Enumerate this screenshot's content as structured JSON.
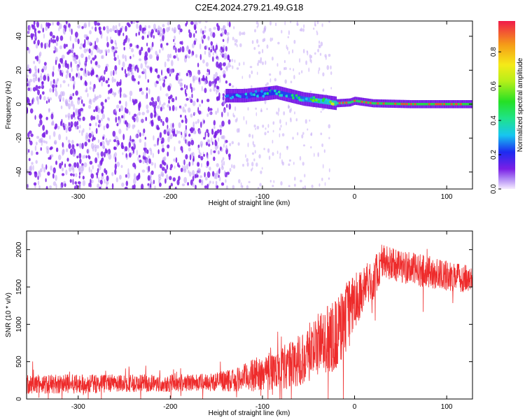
{
  "title": "C2E4.2024.279.21.49.G18",
  "colors": {
    "speckle": "#7a1fe6",
    "snr_line": "#ee2b2b",
    "axis": "#000000"
  },
  "chart_data": [
    {
      "type": "heatmap",
      "xlabel": "Height of straight line (km)",
      "ylabel": "Frequency (Hz)",
      "xlim": [
        -356,
        128
      ],
      "ylim": [
        -50,
        49
      ],
      "x_ticks": [
        -300,
        -200,
        -100,
        0,
        100
      ],
      "x_tick_labels": [
        "-300",
        "-200",
        "-100",
        "0",
        "100"
      ],
      "y_ticks": [
        -40,
        -20,
        0,
        20,
        40
      ],
      "y_tick_labels": [
        "-40",
        "-20",
        "0",
        "20",
        "40"
      ],
      "colorbar": {
        "label": "Normalized spectral amplitude",
        "range": [
          0,
          0.98
        ],
        "ticks": [
          0.0,
          0.2,
          0.4,
          0.6,
          0.8
        ],
        "tick_labels": [
          "0.0",
          "0.2",
          "0.4",
          "0.6",
          "0.8"
        ],
        "colormap": "rainbow"
      },
      "noise_region": {
        "x_range": [
          -356,
          -135
        ],
        "amplitude": 0.1
      },
      "signal_band": {
        "x_start": -140,
        "center_freq_hz": [
          [
            -140,
            5
          ],
          [
            -120,
            5
          ],
          [
            -100,
            6
          ],
          [
            -85,
            7
          ],
          [
            -70,
            5
          ],
          [
            -55,
            3
          ],
          [
            -40,
            2
          ],
          [
            -20,
            0.5
          ],
          [
            -5,
            1
          ],
          [
            0,
            2
          ],
          [
            20,
            0.5
          ],
          [
            60,
            0
          ],
          [
            128,
            0
          ]
        ],
        "peak_amplitude": [
          [
            -140,
            0.28
          ],
          [
            -100,
            0.4
          ],
          [
            -60,
            0.45
          ],
          [
            -20,
            0.7
          ],
          [
            0,
            0.85
          ],
          [
            60,
            0.9
          ],
          [
            128,
            0.9
          ]
        ]
      }
    },
    {
      "type": "line",
      "xlabel": "Height of straight line (km)",
      "ylabel": "SNR (10 * v/v)",
      "xlim": [
        -356,
        128
      ],
      "ylim": [
        0,
        2250
      ],
      "x_ticks": [
        -300,
        -200,
        -100,
        0,
        100
      ],
      "x_tick_labels": [
        "-300",
        "-200",
        "-100",
        "0",
        "100"
      ],
      "y_ticks": [
        0,
        500,
        1000,
        1500,
        2000
      ],
      "y_tick_labels": [
        "0",
        "500",
        "1000",
        "1500",
        "2000"
      ],
      "series": [
        {
          "color": "#ee2b2b",
          "x": [
            -356,
            -300,
            -250,
            -200,
            -160,
            -130,
            -110,
            -90,
            -70,
            -50,
            -40,
            -30,
            -20,
            -15,
            -10,
            -5,
            0,
            10,
            20,
            30,
            40,
            60,
            80,
            100,
            128
          ],
          "values": [
            200,
            200,
            210,
            215,
            225,
            250,
            320,
            380,
            450,
            600,
            700,
            800,
            850,
            950,
            1100,
            1150,
            1300,
            1500,
            1600,
            1850,
            1800,
            1750,
            1700,
            1650,
            1600
          ],
          "spread": [
            130,
            130,
            120,
            120,
            120,
            150,
            220,
            260,
            320,
            380,
            420,
            460,
            500,
            520,
            500,
            450,
            380,
            300,
            280,
            250,
            230,
            220,
            220,
            200,
            180
          ]
        }
      ]
    }
  ]
}
